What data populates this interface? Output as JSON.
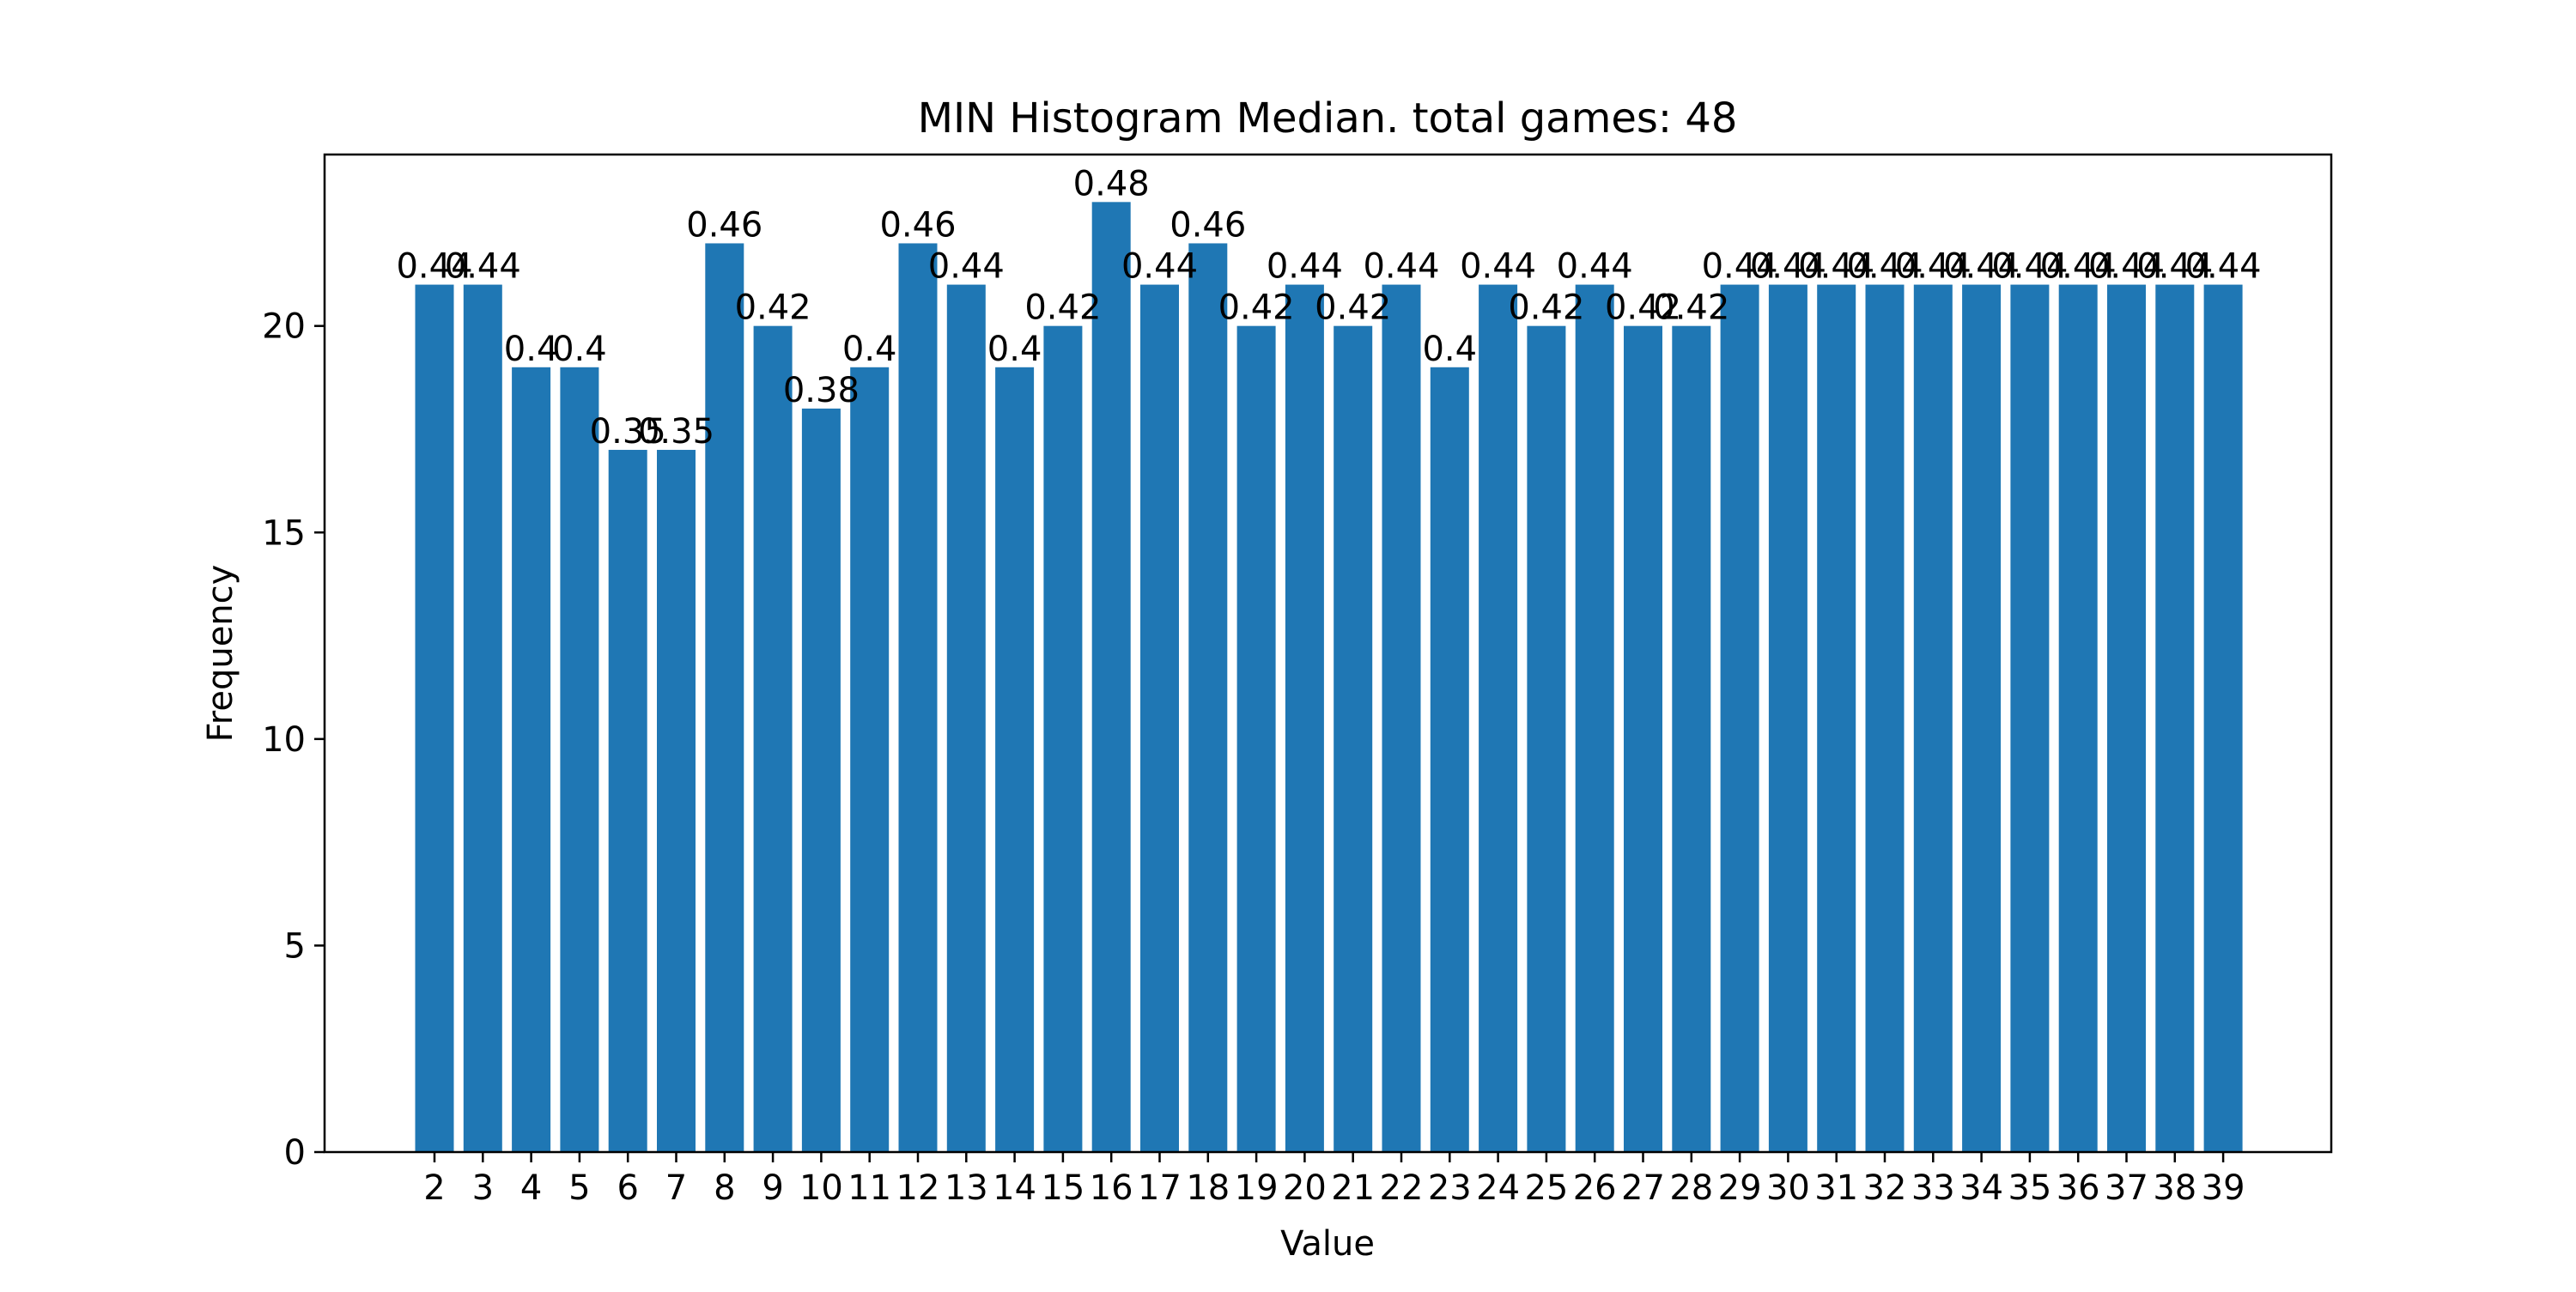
{
  "chart_data": {
    "type": "bar",
    "title": "MIN Histogram Median. total games: 48",
    "xlabel": "Value",
    "ylabel": "Frequency",
    "ylim": [
      0,
      24.15
    ],
    "yticks": [
      0,
      5,
      10,
      15,
      20
    ],
    "grid": false,
    "bar_color": "#1f77b4",
    "categories": [
      "2",
      "3",
      "4",
      "5",
      "6",
      "7",
      "8",
      "9",
      "10",
      "11",
      "12",
      "13",
      "14",
      "15",
      "16",
      "17",
      "18",
      "19",
      "20",
      "21",
      "22",
      "23",
      "24",
      "25",
      "26",
      "27",
      "28",
      "29",
      "30",
      "31",
      "32",
      "33",
      "34",
      "35",
      "36",
      "37",
      "38",
      "39"
    ],
    "values": [
      21,
      21,
      19,
      19,
      17,
      17,
      22,
      20,
      18,
      19,
      22,
      21,
      19,
      20,
      23,
      21,
      22,
      20,
      21,
      20,
      21,
      19,
      21,
      20,
      21,
      20,
      20,
      21,
      21,
      21,
      21,
      21,
      21,
      21,
      21,
      21,
      21,
      21
    ],
    "labels": [
      "0.44",
      "0.44",
      "0.4",
      "0.4",
      "0.35",
      "0.35",
      "0.46",
      "0.42",
      "0.38",
      "0.4",
      "0.46",
      "0.44",
      "0.4",
      "0.42",
      "0.48",
      "0.44",
      "0.46",
      "0.42",
      "0.44",
      "0.42",
      "0.44",
      "0.4",
      "0.44",
      "0.42",
      "0.44",
      "0.42",
      "0.42",
      "0.44",
      "0.44",
      "0.44",
      "0.44",
      "0.44",
      "0.44",
      "0.44",
      "0.44",
      "0.44",
      "0.44",
      "0.44"
    ]
  }
}
